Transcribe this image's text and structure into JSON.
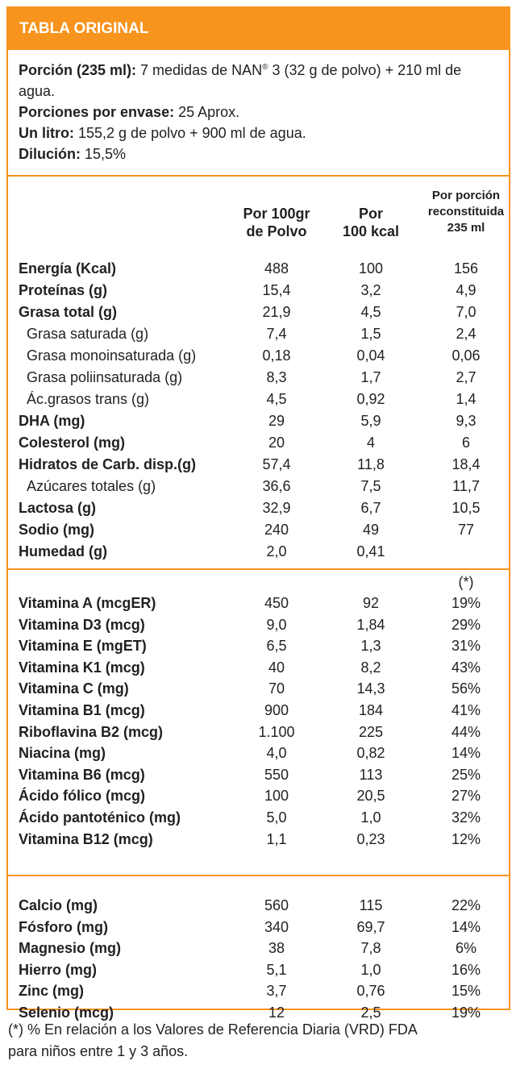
{
  "header": {
    "title": "TABLA ORIGINAL"
  },
  "intro": {
    "portion_label": "Porción (235 ml):",
    "portion_text_a": " 7 medidas de NAN",
    "portion_reg": "®",
    "portion_text_b": " 3 (32 g de polvo) + 210 ml de agua.",
    "servings_label": "Porciones por envase:",
    "servings_value": " 25 Aprox.",
    "liter_label": "Un litro:",
    "liter_value": " 155,2 g de polvo + 900 ml de agua.",
    "dilution_label": "Dilución:",
    "dilution_value": " 15,5%"
  },
  "columns": {
    "c1": [
      "Por 100gr",
      "de Polvo"
    ],
    "c2": [
      "Por",
      "100 kcal"
    ],
    "c3": [
      "Por porción",
      "reconstituida",
      "235 ml"
    ]
  },
  "macros": [
    {
      "label": "Energía (Kcal)",
      "style": "b",
      "v1": "488",
      "v2": "100",
      "v3": "156"
    },
    {
      "label": "Proteínas (g)",
      "style": "b",
      "v1": "15,4",
      "v2": "3,2",
      "v3": "4,9"
    },
    {
      "label": "Grasa total (g)",
      "style": "b",
      "v1": "21,9",
      "v2": "4,5",
      "v3": "7,0"
    },
    {
      "label": "Grasa saturada (g)",
      "style": "sub",
      "v1": "7,4",
      "v2": "1,5",
      "v3": "2,4"
    },
    {
      "label": "Grasa monoinsaturada (g)",
      "style": "sub",
      "v1": "0,18",
      "v2": "0,04",
      "v3": "0,06"
    },
    {
      "label": "Grasa poliinsaturada (g)",
      "style": "sub",
      "v1": "8,3",
      "v2": "1,7",
      "v3": "2,7"
    },
    {
      "label": "Ác.grasos trans (g)",
      "style": "sub",
      "v1": "4,5",
      "v2": "0,92",
      "v3": "1,4"
    },
    {
      "label": "DHA (mg)",
      "style": "b",
      "v1": "29",
      "v2": "5,9",
      "v3": "9,3"
    },
    {
      "label": "Colesterol (mg)",
      "style": "b",
      "v1": "20",
      "v2": "4",
      "v3": "6"
    },
    {
      "label": "Hidratos de Carb. disp.(g)",
      "style": "b",
      "v1": "57,4",
      "v2": "11,8",
      "v3": "18,4"
    },
    {
      "label": "Azúcares totales (g)",
      "style": "sub",
      "v1": "36,6",
      "v2": "7,5",
      "v3": "11,7"
    },
    {
      "label": "Lactosa (g)",
      "style": "b",
      "v1": "32,9",
      "v2": "6,7",
      "v3": "10,5"
    },
    {
      "label": "Sodio (mg)",
      "style": "b",
      "v1": "240",
      "v2": "49",
      "v3": "77"
    },
    {
      "label": "Humedad (g)",
      "style": "b",
      "v1": "2,0",
      "v2": "0,41",
      "v3": ""
    }
  ],
  "vitamins_note": "(*)",
  "vitamins": [
    {
      "label": "Vitamina A (mcgER)",
      "style": "b",
      "v1": "450",
      "v2": "92",
      "v3": "19%"
    },
    {
      "label": "Vitamina D3 (mcg)",
      "style": "b",
      "v1": "9,0",
      "v2": "1,84",
      "v3": "29%"
    },
    {
      "label": "Vitamina E (mgET)",
      "style": "b",
      "v1": "6,5",
      "v2": "1,3",
      "v3": "31%"
    },
    {
      "label": "Vitamina K1 (mcg)",
      "style": "b",
      "v1": "40",
      "v2": "8,2",
      "v3": "43%"
    },
    {
      "label": "Vitamina C (mg)",
      "style": "b",
      "v1": "70",
      "v2": "14,3",
      "v3": "56%"
    },
    {
      "label": "Vitamina B1 (mcg)",
      "style": "b",
      "v1": "900",
      "v2": "184",
      "v3": "41%"
    },
    {
      "label": "Riboflavina B2 (mcg)",
      "style": "b",
      "v1": "1.100",
      "v2": "225",
      "v3": "44%"
    },
    {
      "label": "Niacina (mg)",
      "style": "b",
      "v1": "4,0",
      "v2": "0,82",
      "v3": "14%"
    },
    {
      "label": "Vitamina B6 (mcg)",
      "style": "b",
      "v1": "550",
      "v2": "113",
      "v3": "25%"
    },
    {
      "label": "Ácido fólico (mcg)",
      "style": "b",
      "v1": "100",
      "v2": "20,5",
      "v3": "27%"
    },
    {
      "label": "Ácido pantoténico (mg)",
      "style": "b",
      "v1": "5,0",
      "v2": "1,0",
      "v3": "32%"
    },
    {
      "label": "Vitamina B12 (mcg)",
      "style": "b",
      "v1": "1,1",
      "v2": "0,23",
      "v3": "12%"
    }
  ],
  "minerals": [
    {
      "label": "Calcio (mg)",
      "style": "b",
      "v1": "560",
      "v2": "115",
      "v3": "22%"
    },
    {
      "label": "Fósforo (mg)",
      "style": "b",
      "v1": "340",
      "v2": "69,7",
      "v3": "14%"
    },
    {
      "label": "Magnesio (mg)",
      "style": "b",
      "v1": "38",
      "v2": "7,8",
      "v3": "6%"
    },
    {
      "label": "Hierro (mg)",
      "style": "b",
      "v1": "5,1",
      "v2": "1,0",
      "v3": "16%"
    },
    {
      "label": "Zinc (mg)",
      "style": "b",
      "v1": "3,7",
      "v2": "0,76",
      "v3": "15%"
    },
    {
      "label": "Selenio (mcg)",
      "style": "b",
      "v1": "12",
      "v2": "2,5",
      "v3": "19%"
    }
  ],
  "footnote": [
    "(*) % En relación a los Valores de Referencia Diaria (VRD) FDA",
    "para niños entre 1 y 3 años."
  ]
}
